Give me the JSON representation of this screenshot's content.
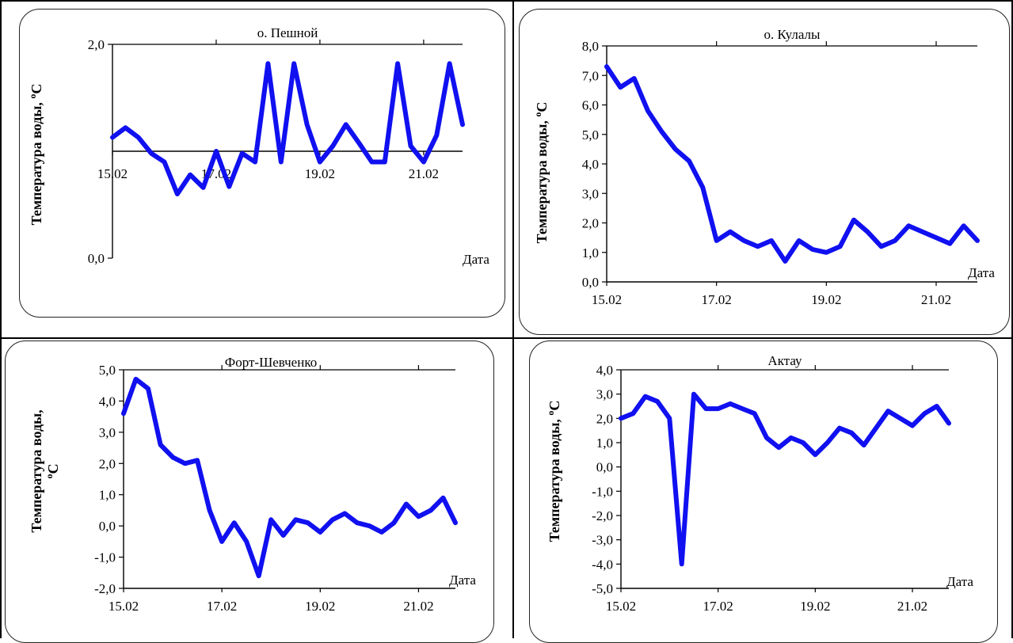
{
  "colors": {
    "line": "#1010f0",
    "axis": "#000000",
    "frame": "#000000"
  },
  "chart_data": [
    {
      "type": "line",
      "title": "о. Пешной",
      "ylabel": "Температура воды,  оС",
      "ylabel_line1": "Температура воды,",
      "ylabel_line2": "",
      "unit_sup": "о",
      "unit": "С",
      "xlabel": "Дата",
      "ylim": [
        0,
        2
      ],
      "yticks": [
        "0,0",
        "2,0"
      ],
      "xticks": [
        "15.02",
        "17.02",
        "19.02",
        "21.02"
      ],
      "xtick_positions": [
        0,
        8,
        16,
        24
      ],
      "xaxis_at_y": 1,
      "top_ticks": [
        8,
        16,
        24
      ],
      "series": [
        {
          "values": [
            1.13,
            1.22,
            1.13,
            0.98,
            0.9,
            0.6,
            0.78,
            0.66,
            1.0,
            0.67,
            0.98,
            0.9,
            1.82,
            0.9,
            1.82,
            1.25,
            0.9,
            1.05,
            1.25,
            1.08,
            0.9,
            0.9,
            1.82,
            1.05,
            0.9,
            1.15,
            1.82,
            1.25
          ]
        }
      ]
    },
    {
      "type": "line",
      "title": "о. Кулалы",
      "ylabel": "Температура воды,  оС",
      "ylabel_line1": "Температура воды,",
      "ylabel_line2": "",
      "unit_sup": "о",
      "unit": "С",
      "xlabel": "Дата",
      "ylim": [
        0,
        8
      ],
      "yticks": [
        "0,0",
        "1,0",
        "2,0",
        "3,0",
        "4,0",
        "5,0",
        "6,0",
        "7,0",
        "8,0"
      ],
      "xticks": [
        "15.02",
        "17.02",
        "19.02",
        "21.02"
      ],
      "xtick_positions": [
        0,
        8,
        16,
        24
      ],
      "xaxis_at_y": 0,
      "top_ticks": [
        8,
        16,
        24
      ],
      "series": [
        {
          "values": [
            7.3,
            6.6,
            6.9,
            5.8,
            5.1,
            4.5,
            4.1,
            3.2,
            1.4,
            1.7,
            1.4,
            1.2,
            1.4,
            0.7,
            1.4,
            1.1,
            1.0,
            1.2,
            2.1,
            1.7,
            1.2,
            1.4,
            1.9,
            1.7,
            1.5,
            1.3,
            1.9,
            1.4
          ]
        }
      ]
    },
    {
      "type": "line",
      "title": "Форт-Шевченко",
      "ylabel": "Температура воды, оС",
      "ylabel_line1": "Температура воды,",
      "ylabel_line2": "о",
      "unit_sup": "",
      "unit": "С",
      "xlabel": "Дата",
      "ylim": [
        -2,
        5
      ],
      "yticks": [
        "-2,0",
        "-1,0",
        "0,0",
        "1,0",
        "2,0",
        "3,0",
        "4,0",
        "5,0"
      ],
      "xticks": [
        "15.02",
        "17.02",
        "19.02",
        "21.02"
      ],
      "xtick_positions": [
        0,
        8,
        16,
        24
      ],
      "xaxis_at_y": -2,
      "top_ticks": [
        8,
        16,
        24
      ],
      "series": [
        {
          "values": [
            3.6,
            4.7,
            4.4,
            2.6,
            2.2,
            2.0,
            2.1,
            0.5,
            -0.5,
            0.1,
            -0.5,
            -1.6,
            0.2,
            -0.3,
            0.2,
            0.1,
            -0.2,
            0.2,
            0.4,
            0.1,
            0.0,
            -0.2,
            0.1,
            0.7,
            0.3,
            0.5,
            0.9,
            0.1
          ]
        }
      ]
    },
    {
      "type": "line",
      "title": "Актау",
      "ylabel": "Температура воды,  оС",
      "ylabel_line1": "Температура воды,",
      "ylabel_line2": "",
      "unit_sup": "о",
      "unit": "С",
      "xlabel": "Дата",
      "ylim": [
        -5,
        4
      ],
      "yticks": [
        "-5,0",
        "-4,0",
        "-3,0",
        "-2,0",
        "-1,0",
        "0,0",
        "1,0",
        "2,0",
        "3,0",
        "4,0"
      ],
      "xticks": [
        "15.02",
        "17.02",
        "19.02",
        "21.02"
      ],
      "xtick_positions": [
        0,
        8,
        16,
        24
      ],
      "xaxis_at_y": -5,
      "top_ticks": [
        8,
        16,
        24
      ],
      "series": [
        {
          "values": [
            2.0,
            2.2,
            2.9,
            2.7,
            2.0,
            -4.0,
            3.0,
            2.4,
            2.4,
            2.6,
            2.4,
            2.2,
            1.2,
            0.8,
            1.2,
            1.0,
            0.5,
            1.0,
            1.6,
            1.4,
            0.9,
            1.6,
            2.3,
            2.0,
            1.7,
            2.2,
            2.5,
            1.8
          ]
        }
      ]
    }
  ]
}
